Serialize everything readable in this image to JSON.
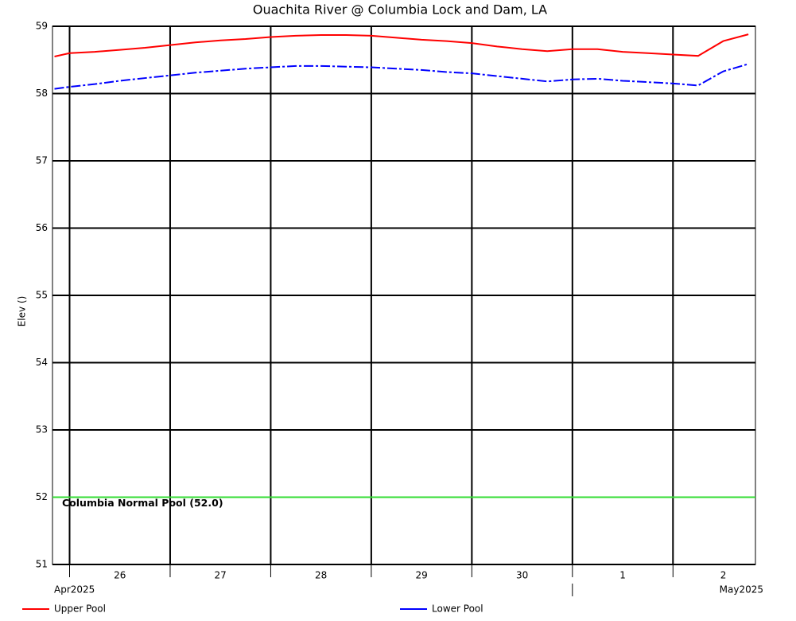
{
  "chart_data": {
    "type": "line",
    "title": "Ouachita River @ Columbia Lock and Dam, LA",
    "y_label": "Elev ()",
    "x": [
      -0.15,
      0,
      0.25,
      0.5,
      0.75,
      1,
      1.25,
      1.5,
      1.75,
      2,
      2.25,
      2.5,
      2.75,
      3,
      3.25,
      3.5,
      3.75,
      4,
      4.25,
      4.5,
      4.75,
      5,
      5.25,
      5.5,
      5.75,
      6,
      6.25,
      6.5,
      6.75
    ],
    "xlim": [
      -0.17,
      6.82
    ],
    "xticks": [
      {
        "value": 0,
        "label": "26"
      },
      {
        "value": 1,
        "label": "27"
      },
      {
        "value": 2,
        "label": "28"
      },
      {
        "value": 3,
        "label": "29"
      },
      {
        "value": 4,
        "label": "30"
      },
      {
        "value": 5,
        "label": "1"
      },
      {
        "value": 6,
        "label": "2"
      }
    ],
    "x_period_labels": [
      "Apr2025",
      "May2025"
    ],
    "ylim": [
      51,
      59
    ],
    "yticks": [
      51,
      52,
      53,
      54,
      55,
      56,
      57,
      58,
      59
    ],
    "grid": true,
    "series": [
      {
        "name": "Upper Pool",
        "color": "#ff0000",
        "values": [
          58.55,
          58.6,
          58.62,
          58.65,
          58.68,
          58.72,
          58.76,
          58.79,
          58.81,
          58.84,
          58.86,
          58.87,
          58.87,
          58.86,
          58.83,
          58.8,
          58.78,
          58.75,
          58.7,
          58.66,
          58.63,
          58.66,
          58.66,
          58.62,
          58.6,
          58.58,
          58.56,
          58.78,
          58.88
        ]
      },
      {
        "name": "Lower Pool",
        "color": "#0000ff",
        "dashed": true,
        "values": [
          58.07,
          58.1,
          58.14,
          58.19,
          58.23,
          58.27,
          58.31,
          58.34,
          58.37,
          58.39,
          58.41,
          58.41,
          58.4,
          58.39,
          58.37,
          58.35,
          58.32,
          58.3,
          58.26,
          58.22,
          58.18,
          58.21,
          58.22,
          58.19,
          58.17,
          58.15,
          58.12,
          58.33,
          58.44
        ]
      }
    ],
    "reference_lines": [
      {
        "value": 52,
        "label": "Columbia Normal Pool (52.0)",
        "color": "#33dd33"
      }
    ]
  }
}
